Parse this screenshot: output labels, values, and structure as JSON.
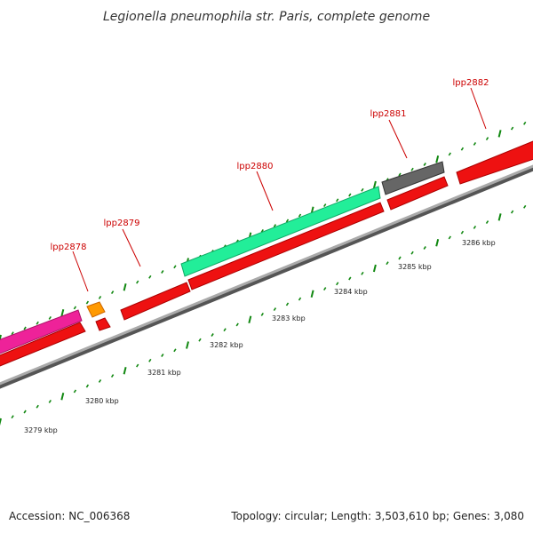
{
  "title": "Legionella pneumophila str. Paris, complete genome",
  "gene_labels": [
    "lpp2878",
    "lpp2879",
    "lpp2880",
    "lpp2881",
    "lpp2882"
  ],
  "kbp_labels": [
    "3279 kbp",
    "3280 kbp",
    "3281 kbp",
    "3282 kbp",
    "3283 kbp",
    "3284 kbp",
    "3285 kbp",
    "3286 kbp"
  ],
  "footer": {
    "accession": "Accession: NC_006368",
    "summary": "Topology: circular; Length: 3,503,610 bp; Genes: 3,080"
  },
  "colors": {
    "cds": "#ee1111",
    "cds_dark": "#aa0000",
    "backbone": "#888888",
    "tick": "#118811",
    "label": "#cc0000",
    "magenta": "#ee2299",
    "orange": "#ff9900",
    "cyan": "#22ee99",
    "gray": "#666666"
  }
}
